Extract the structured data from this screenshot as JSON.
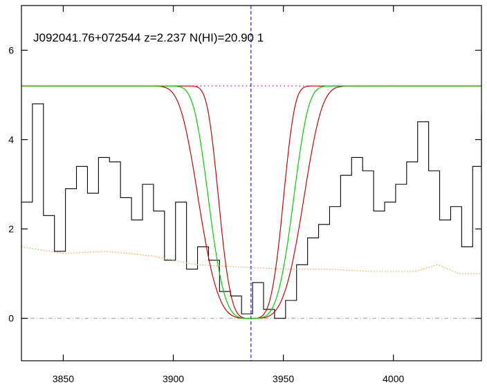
{
  "chart_data": {
    "type": "line",
    "title": "J092041.76+072544 z=2.237 N(HI)=20.90 1",
    "xlabel": "",
    "ylabel": "",
    "xlim": [
      3831,
      4040
    ],
    "ylim": [
      -0.95,
      7.0
    ],
    "x_ticks": [
      3850,
      3900,
      3950,
      4000
    ],
    "y_ticks": [
      0,
      2,
      4,
      6
    ],
    "grid": false,
    "legend": "none",
    "vertical_line_x": 3935.3,
    "continuum_level": 5.2,
    "zero_level": 0,
    "colors": {
      "flux": "#000000",
      "error": "#e8a040",
      "fit": "#00cc00",
      "fit_bounds": "#cc0000",
      "continuum": "#cc00cc",
      "center_line": "#0000bb",
      "zero_line": "#999999"
    },
    "series": [
      {
        "role": "flux",
        "x": [
          3831,
          3836,
          3841,
          3846,
          3851,
          3856,
          3861,
          3866,
          3871,
          3876,
          3881,
          3886,
          3891,
          3896,
          3901,
          3906,
          3911,
          3916,
          3921,
          3926,
          3931,
          3936,
          3941,
          3946,
          3951,
          3956,
          3961,
          3966,
          3971,
          3976,
          3981,
          3986,
          3991,
          3996,
          4001,
          4006,
          4011,
          4016,
          4021,
          4026,
          4031,
          4036,
          4040
        ],
        "y": [
          2.6,
          4.8,
          2.3,
          1.5,
          2.9,
          3.4,
          2.8,
          3.6,
          3.5,
          2.7,
          2.2,
          3.0,
          2.4,
          1.3,
          2.6,
          1.1,
          1.6,
          1.3,
          0.6,
          0.5,
          0.1,
          0.8,
          0.2,
          0.0,
          0.4,
          1.2,
          1.8,
          2.1,
          2.5,
          3.2,
          3.6,
          3.3,
          2.4,
          2.6,
          3.0,
          3.5,
          4.4,
          3.3,
          2.2,
          2.5,
          1.6,
          3.4,
          4.6
        ]
      },
      {
        "role": "error",
        "x": [
          3831,
          3850,
          3870,
          3890,
          3910,
          3930,
          3950,
          3970,
          3990,
          4010,
          4020,
          4030,
          4040
        ],
        "y": [
          1.6,
          1.45,
          1.5,
          1.4,
          1.2,
          1.15,
          1.1,
          1.1,
          1.05,
          1.05,
          1.2,
          1.0,
          1.0
        ]
      }
    ],
    "absorption_model": {
      "center": 3935.3,
      "continuum": 5.2,
      "fit_width": 21,
      "bound_widths": [
        16,
        26
      ]
    }
  }
}
